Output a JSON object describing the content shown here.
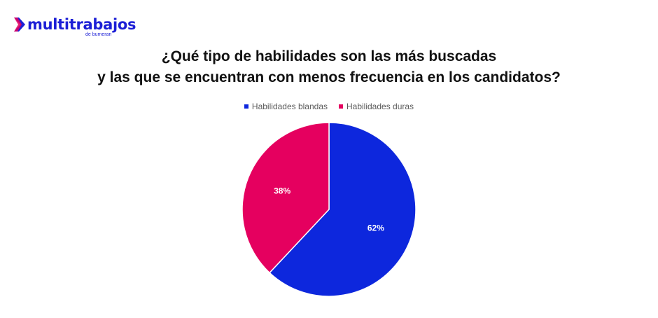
{
  "brand": {
    "name": "multitrabajos",
    "sub": "de bumeran",
    "color": "#1c1fd6"
  },
  "chart_data": {
    "type": "pie",
    "title_lines": [
      "¿Qué tipo de habilidades son las más buscadas",
      "y las que se encuentran con menos frecuencia en los candidatos?"
    ],
    "legend_position": "top",
    "slices": [
      {
        "label": "Habilidades blandas",
        "value": 62,
        "display": "62%",
        "color": "#0d27dd"
      },
      {
        "label": "Habilidades duras",
        "value": 38,
        "display": "38%",
        "color": "#e5005f"
      }
    ]
  }
}
